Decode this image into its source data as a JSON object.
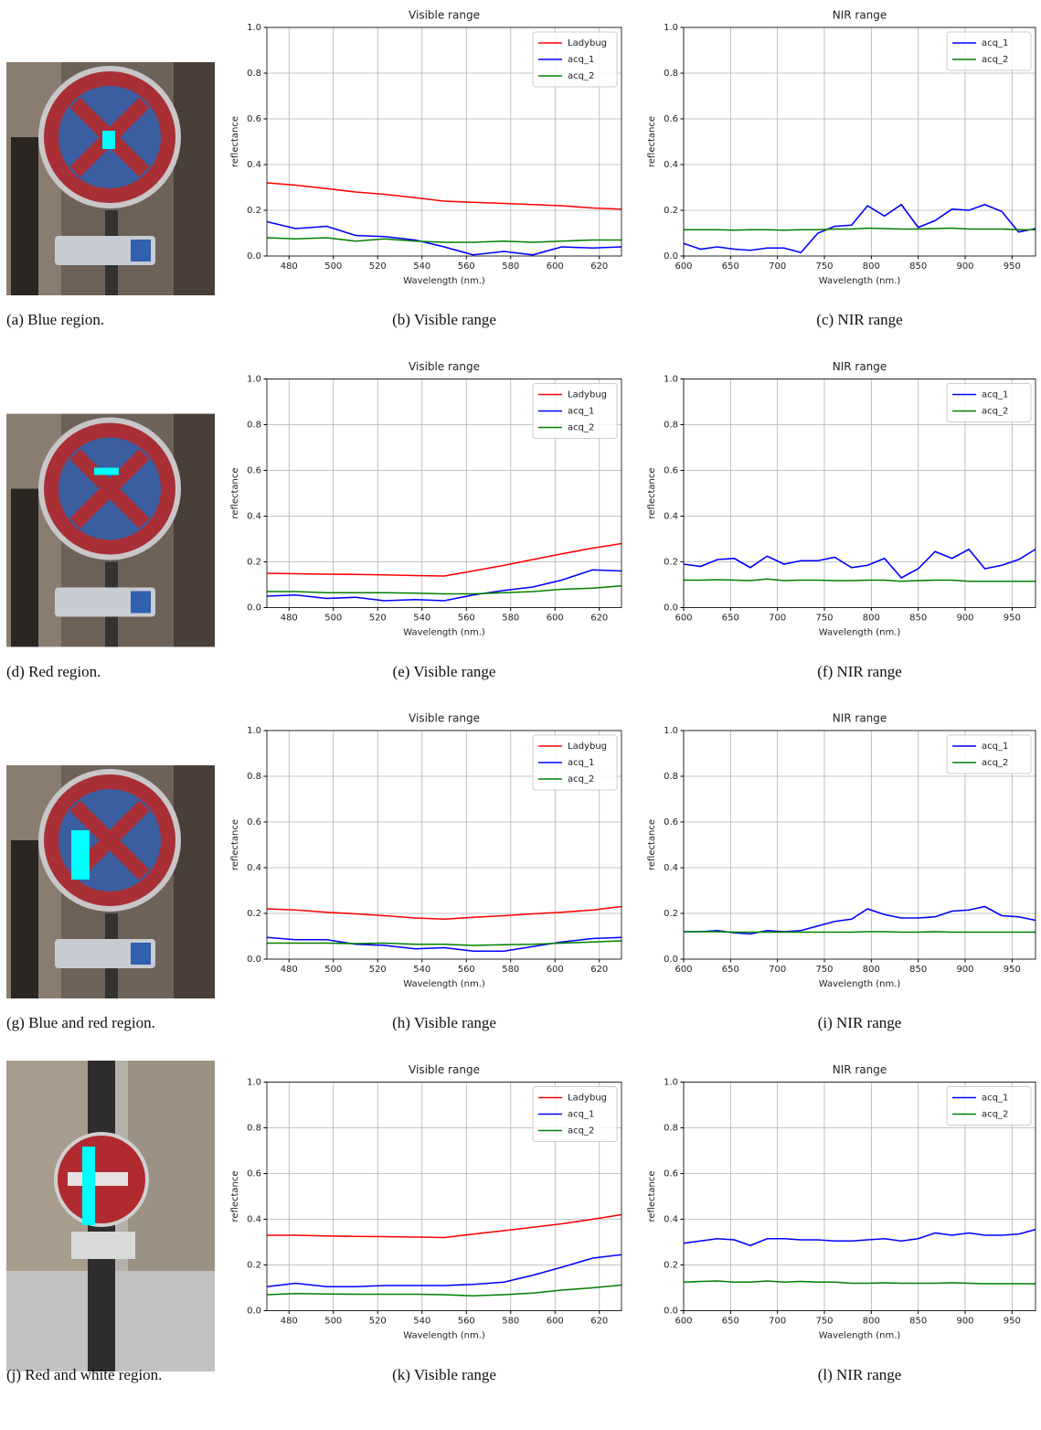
{
  "image_captions": [
    "(a) Blue region.",
    "(d) Red region.",
    "(g) Blue and red region.",
    "(j) Red and white region."
  ],
  "chart_data": [
    {
      "type": "line",
      "title": "Visible range",
      "caption": "(b) Visible range",
      "xlabel": "Wavelength (nm.)",
      "ylabel": "reflectance",
      "x": [
        470,
        483,
        497,
        510,
        523,
        537,
        550,
        563,
        577,
        590,
        603,
        617,
        630
      ],
      "series": [
        {
          "name": "Ladybug",
          "color": "#ff0000",
          "values": [
            0.32,
            0.31,
            0.295,
            0.28,
            0.27,
            0.255,
            0.24,
            0.235,
            0.23,
            0.225,
            0.22,
            0.21,
            0.205
          ]
        },
        {
          "name": "acq_1",
          "color": "#0000ff",
          "values": [
            0.15,
            0.12,
            0.13,
            0.09,
            0.085,
            0.07,
            0.04,
            0.005,
            0.02,
            0.005,
            0.04,
            0.035,
            0.04
          ]
        },
        {
          "name": "acq_2",
          "color": "#008000",
          "values": [
            0.08,
            0.075,
            0.08,
            0.065,
            0.075,
            0.065,
            0.06,
            0.06,
            0.065,
            0.06,
            0.065,
            0.07,
            0.07
          ]
        }
      ],
      "xlim": [
        470,
        630
      ],
      "xticks": [
        480,
        500,
        520,
        540,
        560,
        580,
        600,
        620
      ],
      "ylim": [
        0,
        1
      ],
      "yticks": [
        {
          "value": 0,
          "label": "0.0"
        },
        0.2,
        0.4,
        0.6,
        0.8,
        {
          "value": 1,
          "label": "1.0"
        }
      ],
      "grid": true,
      "legend": "upper-right"
    },
    {
      "type": "line",
      "title": "NIR range",
      "caption": "(c) NIR range",
      "xlabel": "Wavelength (nm.)",
      "ylabel": "reflectance",
      "x": [
        600,
        618,
        636,
        654,
        671,
        689,
        707,
        725,
        743,
        761,
        779,
        796,
        814,
        832,
        850,
        868,
        886,
        904,
        921,
        939,
        957,
        975
      ],
      "series": [
        {
          "name": "acq_1",
          "color": "#0000ff",
          "values": [
            0.055,
            0.03,
            0.04,
            0.03,
            0.025,
            0.035,
            0.035,
            0.015,
            0.1,
            0.13,
            0.135,
            0.22,
            0.175,
            0.225,
            0.125,
            0.155,
            0.205,
            0.2,
            0.225,
            0.195,
            0.105,
            0.12
          ]
        },
        {
          "name": "acq_2",
          "color": "#008000",
          "values": [
            0.115,
            0.115,
            0.115,
            0.113,
            0.115,
            0.115,
            0.113,
            0.115,
            0.115,
            0.118,
            0.118,
            0.122,
            0.12,
            0.118,
            0.118,
            0.12,
            0.122,
            0.118,
            0.118,
            0.118,
            0.115,
            0.115
          ]
        }
      ],
      "xlim": [
        600,
        975
      ],
      "xticks": [
        600,
        650,
        700,
        750,
        800,
        850,
        900,
        950
      ],
      "ylim": [
        0,
        1
      ],
      "yticks": [
        {
          "value": 0,
          "label": "0.0"
        },
        0.2,
        0.4,
        0.6,
        0.8,
        {
          "value": 1,
          "label": "1.0"
        }
      ],
      "grid": true,
      "legend": "upper-right"
    },
    {
      "type": "line",
      "title": "Visible range",
      "caption": "(e) Visible range",
      "xlabel": "Wavelength (nm.)",
      "ylabel": "reflectance",
      "x": [
        470,
        483,
        497,
        510,
        523,
        537,
        550,
        563,
        577,
        590,
        603,
        617,
        630
      ],
      "series": [
        {
          "name": "Ladybug",
          "color": "#ff0000",
          "values": [
            0.15,
            0.148,
            0.146,
            0.145,
            0.143,
            0.14,
            0.138,
            0.16,
            0.185,
            0.21,
            0.235,
            0.26,
            0.28
          ]
        },
        {
          "name": "acq_1",
          "color": "#0000ff",
          "values": [
            0.05,
            0.055,
            0.04,
            0.045,
            0.03,
            0.035,
            0.03,
            0.055,
            0.075,
            0.09,
            0.12,
            0.165,
            0.16
          ]
        },
        {
          "name": "acq_2",
          "color": "#008000",
          "values": [
            0.07,
            0.07,
            0.065,
            0.065,
            0.065,
            0.063,
            0.06,
            0.06,
            0.065,
            0.07,
            0.08,
            0.085,
            0.095
          ]
        }
      ],
      "xlim": [
        470,
        630
      ],
      "xticks": [
        480,
        500,
        520,
        540,
        560,
        580,
        600,
        620
      ],
      "ylim": [
        0,
        1
      ],
      "yticks": [
        {
          "value": 0,
          "label": "0.0"
        },
        0.2,
        0.4,
        0.6,
        0.8,
        {
          "value": 1,
          "label": "1.0"
        }
      ],
      "grid": true,
      "legend": "upper-right"
    },
    {
      "type": "line",
      "title": "NIR range",
      "caption": "(f) NIR range",
      "xlabel": "Wavelength (nm.)",
      "ylabel": "reflectance",
      "x": [
        600,
        618,
        636,
        654,
        671,
        689,
        707,
        725,
        743,
        761,
        779,
        796,
        814,
        832,
        850,
        868,
        886,
        904,
        921,
        939,
        957,
        975
      ],
      "series": [
        {
          "name": "acq_1",
          "color": "#0000ff",
          "values": [
            0.19,
            0.18,
            0.21,
            0.215,
            0.175,
            0.225,
            0.19,
            0.205,
            0.205,
            0.22,
            0.175,
            0.185,
            0.215,
            0.13,
            0.17,
            0.245,
            0.215,
            0.255,
            0.17,
            0.185,
            0.21,
            0.255
          ]
        },
        {
          "name": "acq_2",
          "color": "#008000",
          "values": [
            0.12,
            0.12,
            0.122,
            0.12,
            0.118,
            0.125,
            0.118,
            0.12,
            0.12,
            0.118,
            0.118,
            0.12,
            0.12,
            0.115,
            0.118,
            0.12,
            0.12,
            0.115,
            0.115,
            0.115,
            0.115,
            0.115
          ]
        }
      ],
      "xlim": [
        600,
        975
      ],
      "xticks": [
        600,
        650,
        700,
        750,
        800,
        850,
        900,
        950
      ],
      "ylim": [
        0,
        1
      ],
      "yticks": [
        {
          "value": 0,
          "label": "0.0"
        },
        0.2,
        0.4,
        0.6,
        0.8,
        {
          "value": 1,
          "label": "1.0"
        }
      ],
      "grid": true,
      "legend": "upper-right"
    },
    {
      "type": "line",
      "title": "Visible range",
      "caption": "(h) Visible range",
      "xlabel": "Wavelength (nm.)",
      "ylabel": "reflectance",
      "x": [
        470,
        483,
        497,
        510,
        523,
        537,
        550,
        563,
        577,
        590,
        603,
        617,
        630
      ],
      "series": [
        {
          "name": "Ladybug",
          "color": "#ff0000",
          "values": [
            0.22,
            0.215,
            0.205,
            0.198,
            0.19,
            0.18,
            0.175,
            0.183,
            0.19,
            0.198,
            0.205,
            0.215,
            0.23
          ]
        },
        {
          "name": "acq_1",
          "color": "#0000ff",
          "values": [
            0.095,
            0.085,
            0.085,
            0.065,
            0.06,
            0.045,
            0.05,
            0.035,
            0.035,
            0.055,
            0.075,
            0.09,
            0.095
          ]
        },
        {
          "name": "acq_2",
          "color": "#008000",
          "values": [
            0.07,
            0.07,
            0.07,
            0.068,
            0.07,
            0.065,
            0.065,
            0.06,
            0.063,
            0.065,
            0.07,
            0.075,
            0.08
          ]
        }
      ],
      "xlim": [
        470,
        630
      ],
      "xticks": [
        480,
        500,
        520,
        540,
        560,
        580,
        600,
        620
      ],
      "ylim": [
        0,
        1
      ],
      "yticks": [
        {
          "value": 0,
          "label": "0.0"
        },
        0.2,
        0.4,
        0.6,
        0.8,
        {
          "value": 1,
          "label": "1.0"
        }
      ],
      "grid": true,
      "legend": "upper-right"
    },
    {
      "type": "line",
      "title": "NIR range",
      "caption": "(i) NIR range",
      "xlabel": "Wavelength (nm.)",
      "ylabel": "reflectance",
      "x": [
        600,
        618,
        636,
        654,
        671,
        689,
        707,
        725,
        743,
        761,
        779,
        796,
        814,
        832,
        850,
        868,
        886,
        904,
        921,
        939,
        957,
        975
      ],
      "series": [
        {
          "name": "acq_1",
          "color": "#0000ff",
          "values": [
            0.12,
            0.12,
            0.125,
            0.115,
            0.11,
            0.125,
            0.12,
            0.125,
            0.145,
            0.165,
            0.175,
            0.22,
            0.195,
            0.18,
            0.18,
            0.185,
            0.21,
            0.215,
            0.23,
            0.19,
            0.185,
            0.17
          ]
        },
        {
          "name": "acq_2",
          "color": "#008000",
          "values": [
            0.12,
            0.12,
            0.12,
            0.118,
            0.118,
            0.118,
            0.118,
            0.118,
            0.118,
            0.118,
            0.118,
            0.12,
            0.12,
            0.118,
            0.118,
            0.12,
            0.118,
            0.118,
            0.118,
            0.118,
            0.118,
            0.118
          ]
        }
      ],
      "xlim": [
        600,
        975
      ],
      "xticks": [
        600,
        650,
        700,
        750,
        800,
        850,
        900,
        950
      ],
      "ylim": [
        0,
        1
      ],
      "yticks": [
        {
          "value": 0,
          "label": "0.0"
        },
        0.2,
        0.4,
        0.6,
        0.8,
        {
          "value": 1,
          "label": "1.0"
        }
      ],
      "grid": true,
      "legend": "upper-right"
    },
    {
      "type": "line",
      "title": "Visible range",
      "caption": "(k) Visible range",
      "xlabel": "Wavelength (nm.)",
      "ylabel": "reflectance",
      "x": [
        470,
        483,
        497,
        510,
        523,
        537,
        550,
        563,
        577,
        590,
        603,
        617,
        630
      ],
      "series": [
        {
          "name": "Ladybug",
          "color": "#ff0000",
          "values": [
            0.33,
            0.33,
            0.327,
            0.325,
            0.324,
            0.322,
            0.32,
            0.335,
            0.35,
            0.365,
            0.38,
            0.4,
            0.42
          ]
        },
        {
          "name": "acq_1",
          "color": "#0000ff",
          "values": [
            0.105,
            0.12,
            0.105,
            0.105,
            0.11,
            0.11,
            0.11,
            0.115,
            0.125,
            0.155,
            0.19,
            0.23,
            0.245
          ]
        },
        {
          "name": "acq_2",
          "color": "#008000",
          "values": [
            0.07,
            0.075,
            0.073,
            0.072,
            0.072,
            0.072,
            0.07,
            0.065,
            0.07,
            0.077,
            0.09,
            0.1,
            0.112
          ]
        }
      ],
      "xlim": [
        470,
        630
      ],
      "xticks": [
        480,
        500,
        520,
        540,
        560,
        580,
        600,
        620
      ],
      "ylim": [
        0,
        1
      ],
      "yticks": [
        {
          "value": 0,
          "label": "0.0"
        },
        0.2,
        0.4,
        0.6,
        0.8,
        {
          "value": 1,
          "label": "1.0"
        }
      ],
      "grid": true,
      "legend": "upper-right"
    },
    {
      "type": "line",
      "title": "NIR range",
      "caption": "(l) NIR range",
      "xlabel": "Wavelength (nm.)",
      "ylabel": "reflectance",
      "x": [
        600,
        618,
        636,
        654,
        671,
        689,
        707,
        725,
        743,
        761,
        779,
        796,
        814,
        832,
        850,
        868,
        886,
        904,
        921,
        939,
        957,
        975
      ],
      "series": [
        {
          "name": "acq_1",
          "color": "#0000ff",
          "values": [
            0.295,
            0.305,
            0.315,
            0.31,
            0.285,
            0.315,
            0.315,
            0.31,
            0.31,
            0.305,
            0.305,
            0.31,
            0.315,
            0.305,
            0.315,
            0.34,
            0.33,
            0.34,
            0.33,
            0.33,
            0.335,
            0.355
          ]
        },
        {
          "name": "acq_2",
          "color": "#008000",
          "values": [
            0.125,
            0.128,
            0.13,
            0.125,
            0.125,
            0.13,
            0.125,
            0.128,
            0.125,
            0.125,
            0.12,
            0.12,
            0.122,
            0.12,
            0.12,
            0.12,
            0.122,
            0.12,
            0.118,
            0.118,
            0.118,
            0.118
          ]
        }
      ],
      "xlim": [
        600,
        975
      ],
      "xticks": [
        600,
        650,
        700,
        750,
        800,
        850,
        900,
        950
      ],
      "ylim": [
        0,
        1
      ],
      "yticks": [
        {
          "value": 0,
          "label": "0.0"
        },
        0.2,
        0.4,
        0.6,
        0.8,
        {
          "value": 1,
          "label": "1.0"
        }
      ],
      "grid": true,
      "legend": "upper-right"
    }
  ]
}
